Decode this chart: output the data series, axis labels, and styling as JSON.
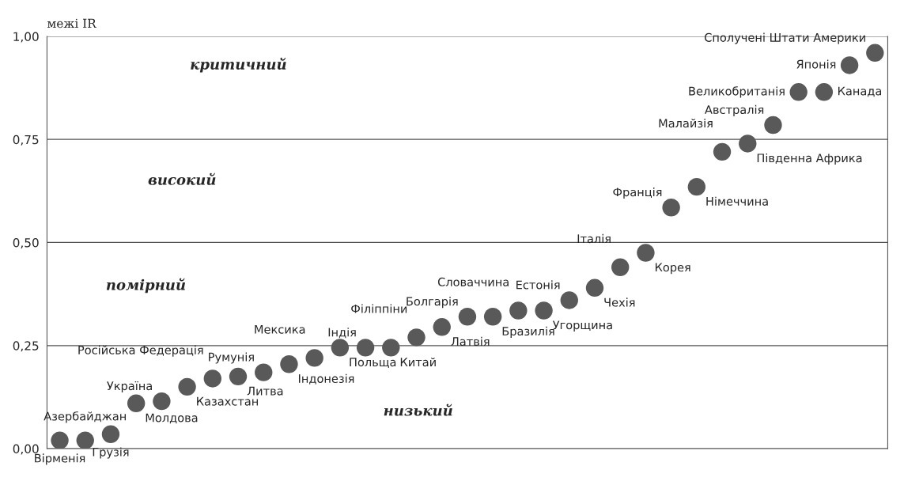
{
  "chart_data": {
    "type": "scatter",
    "ylabel": "межі IR",
    "categories": [
      null,
      null,
      null,
      null,
      null,
      null,
      null,
      null,
      null,
      null,
      null,
      null,
      null,
      null,
      null,
      null,
      null,
      null,
      null,
      null,
      null,
      null,
      null,
      null,
      null,
      null,
      null,
      null,
      null,
      null,
      null,
      null,
      null
    ],
    "series": [
      {
        "color": "#595959",
        "values": [
          0.02,
          0.02,
          0.035,
          0.11,
          0.115,
          0.15,
          0.17,
          0.175,
          0.185,
          0.205,
          0.22,
          0.245,
          0.245,
          0.245,
          0.27,
          0.295,
          0.32,
          0.32,
          0.335,
          0.335,
          0.36,
          0.39,
          0.44,
          0.475,
          0.585,
          0.635,
          0.72,
          0.74,
          0.785,
          0.865,
          0.865,
          0.93,
          0.96
        ],
        "value_labels": [
          "Вірменія",
          "Азербайджан",
          "Грузія",
          "Молдова",
          "Україна",
          "Казахстан",
          "Російська Федерація",
          "Литва",
          "Румунія",
          "Індонезія",
          "Мексика",
          "Польща",
          "Індія",
          "Китай",
          "Філіппіни",
          "Латвія",
          "Болгарія",
          "Бразилія",
          "Словаччина",
          "Угорщина",
          "Естонія",
          "Чехія",
          "Італія",
          "Корея",
          "Франція",
          "Німеччина",
          "Малайзія",
          "Південна Африка",
          "Австралія",
          "Великобританія",
          "Канада",
          "Японія",
          "Сполучені Штати Америки"
        ]
      }
    ],
    "ylim": [
      0,
      1
    ],
    "yticks": [
      {
        "value": 0,
        "label": "0,00"
      },
      {
        "value": 0.25,
        "label": "0,25"
      },
      {
        "value": 0.5,
        "label": "0,50"
      },
      {
        "value": 0.75,
        "label": "0,75"
      },
      {
        "value": 1,
        "label": "1,00"
      }
    ],
    "grid": "y",
    "marker": "circle",
    "annotations": [
      "критичний",
      "високий",
      "помірний",
      "низький"
    ]
  }
}
